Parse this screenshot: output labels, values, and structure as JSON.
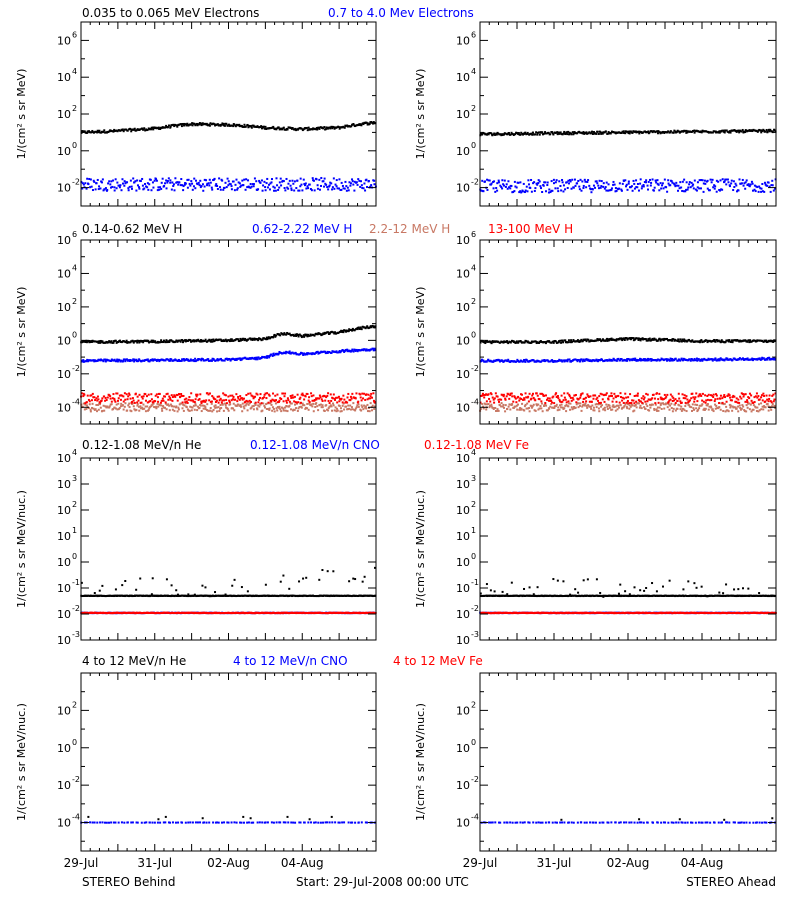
{
  "footer": {
    "left": "STEREO Behind",
    "center": "Start: 29-Jul-2008 00:00 UTC",
    "right": "STEREO Ahead"
  },
  "x_tick_labels": [
    "29-Jul",
    "31-Jul",
    "02-Aug",
    "04-Aug"
  ],
  "colors": {
    "black": "#000000",
    "blue": "#0000ff",
    "tan": "#c87864",
    "red": "#ff0000"
  },
  "chart_data": [
    {
      "type": "scatter",
      "title_parts": [
        {
          "text": "0.035 to 0.065 MeV Electrons",
          "color": "#000000"
        },
        {
          "text": "0.7 to 4.0 Mev Electrons",
          "color": "#0000ff"
        }
      ],
      "ylabel": "1/(cm² s sr MeV)",
      "y_log": true,
      "ylim": [
        0.001,
        10000000
      ],
      "ytick_exponents": [
        -2,
        0,
        2,
        4,
        6
      ],
      "xlim_days": [
        0,
        8
      ],
      "panels": {
        "behind": {
          "series": [
            {
              "color": "#000000",
              "x": [
                0,
                1,
                2,
                3,
                4,
                5,
                6,
                7,
                8
              ],
              "y": [
                10,
                12,
                16,
                28,
                26,
                18,
                15,
                18,
                35
              ]
            },
            {
              "color": "#0000ff",
              "x": [
                0,
                2,
                4,
                6,
                8
              ],
              "y": [
                0.015,
                0.015,
                0.015,
                0.015,
                0.015
              ]
            }
          ]
        },
        "ahead": {
          "series": [
            {
              "color": "#000000",
              "x": [
                0,
                2,
                4,
                6,
                8
              ],
              "y": [
                8,
                9,
                10,
                11,
                12
              ]
            },
            {
              "color": "#0000ff",
              "x": [
                0,
                2,
                4,
                6,
                8
              ],
              "y": [
                0.012,
                0.012,
                0.013,
                0.013,
                0.013
              ]
            }
          ]
        }
      }
    },
    {
      "type": "scatter",
      "title_parts": [
        {
          "text": "0.14-0.62 MeV H",
          "color": "#000000"
        },
        {
          "text": "0.62-2.22 MeV H",
          "color": "#0000ff"
        },
        {
          "text": "2.2-12 MeV H",
          "color": "#c87864"
        },
        {
          "text": "13-100 MeV H",
          "color": "#ff0000"
        }
      ],
      "ylabel": "1/(cm² s sr MeV)",
      "y_log": true,
      "ylim": [
        1e-05,
        1000000
      ],
      "ytick_exponents": [
        -4,
        -2,
        0,
        2,
        4,
        6
      ],
      "xlim_days": [
        0,
        8
      ],
      "panels": {
        "behind": {
          "series": [
            {
              "color": "#000000",
              "x": [
                0,
                2,
                4,
                5,
                5.5,
                6,
                7,
                8
              ],
              "y": [
                0.8,
                0.85,
                1.0,
                1.2,
                2.5,
                1.8,
                3,
                7
              ]
            },
            {
              "color": "#0000ff",
              "x": [
                0,
                2,
                4,
                5,
                5.5,
                6,
                7,
                8
              ],
              "y": [
                0.06,
                0.065,
                0.07,
                0.09,
                0.2,
                0.15,
                0.22,
                0.3
              ]
            },
            {
              "color": "#c87864",
              "x": [
                0,
                4,
                8
              ],
              "y": [
                0.0001,
                0.0001,
                0.0001
              ]
            },
            {
              "color": "#ff0000",
              "x": [
                0,
                4,
                8
              ],
              "y": [
                0.00035,
                0.00035,
                0.00035
              ]
            }
          ]
        },
        "ahead": {
          "series": [
            {
              "color": "#000000",
              "x": [
                0,
                2,
                4,
                6,
                8
              ],
              "y": [
                0.8,
                0.8,
                1.2,
                0.9,
                0.9
              ]
            },
            {
              "color": "#0000ff",
              "x": [
                0,
                2,
                4,
                6,
                8
              ],
              "y": [
                0.06,
                0.06,
                0.07,
                0.07,
                0.08
              ]
            },
            {
              "color": "#c87864",
              "x": [
                0,
                4,
                8
              ],
              "y": [
                0.0001,
                0.0001,
                0.0001
              ]
            },
            {
              "color": "#ff0000",
              "x": [
                0,
                4,
                8
              ],
              "y": [
                0.00035,
                0.00035,
                0.00035
              ]
            }
          ]
        }
      }
    },
    {
      "type": "scatter",
      "title_parts": [
        {
          "text": "0.12-1.08 MeV/n He",
          "color": "#000000"
        },
        {
          "text": "0.12-1.08 MeV/n CNO",
          "color": "#0000ff"
        },
        {
          "text": "0.12-1.08 MeV Fe",
          "color": "#ff0000"
        }
      ],
      "ylabel": "1/(cm² s sr MeV/nuc.)",
      "y_log": true,
      "ylim": [
        0.001,
        10000
      ],
      "ytick_exponents": [
        -3,
        -2,
        -1,
        0,
        1,
        2,
        3,
        4
      ],
      "xlim_days": [
        0,
        8
      ],
      "panels": {
        "behind": {
          "series": [
            {
              "color": "#000000",
              "x": [
                0,
                2,
                4,
                6,
                8
              ],
              "y": [
                0.05,
                0.05,
                0.05,
                0.05,
                0.05
              ]
            },
            {
              "color": "#000000",
              "x": [
                0,
                1,
                2,
                3,
                4,
                5,
                6,
                7,
                8
              ],
              "y": [
                0.1,
                0.1,
                0.11,
                0.1,
                0.11,
                0.12,
                0.2,
                0.25,
                0.3
              ]
            },
            {
              "color": "#0000ff",
              "x": [
                0,
                4,
                8
              ],
              "y": [
                0.011,
                0.011,
                0.011
              ]
            },
            {
              "color": "#ff0000",
              "x": [
                0,
                4,
                8
              ],
              "y": [
                0.011,
                0.011,
                0.011
              ]
            }
          ]
        },
        "ahead": {
          "series": [
            {
              "color": "#000000",
              "x": [
                0,
                2,
                4,
                6,
                8
              ],
              "y": [
                0.05,
                0.05,
                0.05,
                0.05,
                0.05
              ]
            },
            {
              "color": "#000000",
              "x": [
                0,
                2,
                4,
                6,
                8
              ],
              "y": [
                0.1,
                0.1,
                0.1,
                0.1,
                0.1
              ]
            },
            {
              "color": "#0000ff",
              "x": [
                0,
                4,
                8
              ],
              "y": [
                0.011,
                0.011,
                0.011
              ]
            },
            {
              "color": "#ff0000",
              "x": [
                0,
                4,
                8
              ],
              "y": [
                0.011,
                0.011,
                0.011
              ]
            }
          ]
        }
      }
    },
    {
      "type": "scatter",
      "title_parts": [
        {
          "text": "4 to 12 MeV/n He",
          "color": "#000000"
        },
        {
          "text": "4 to 12 MeV/n CNO",
          "color": "#0000ff"
        },
        {
          "text": "4 to 12 MeV Fe",
          "color": "#ff0000"
        }
      ],
      "ylabel": "1/(cm² s sr MeV/nuc.)",
      "y_log": true,
      "ylim": [
        3e-06,
        10000
      ],
      "ytick_exponents": [
        -4,
        -2,
        0,
        2
      ],
      "xlim_days": [
        0,
        8
      ],
      "panels": {
        "behind": {
          "series": [
            {
              "color": "#0000ff",
              "x": [
                0,
                4,
                8
              ],
              "y": [
                0.0001,
                0.0001,
                0.0001
              ]
            },
            {
              "color": "#000000",
              "x": [
                0.2,
                2.1,
                2.3,
                3.3,
                4.4,
                4.6,
                5.6,
                6.2,
                6.8
              ],
              "y": [
                0.0002,
                0.00015,
                0.0002,
                0.00017,
                0.0002,
                0.00017,
                0.0002,
                0.00015,
                0.0002
              ]
            }
          ]
        },
        "ahead": {
          "series": [
            {
              "color": "#0000ff",
              "x": [
                0,
                4,
                8
              ],
              "y": [
                0.0001,
                0.0001,
                0.0001
              ]
            },
            {
              "color": "#000000",
              "x": [
                2.2,
                4.3,
                5.4,
                6.6,
                7.9
              ],
              "y": [
                0.00014,
                0.00015,
                0.00015,
                0.00014,
                0.00017
              ]
            }
          ]
        }
      }
    }
  ]
}
